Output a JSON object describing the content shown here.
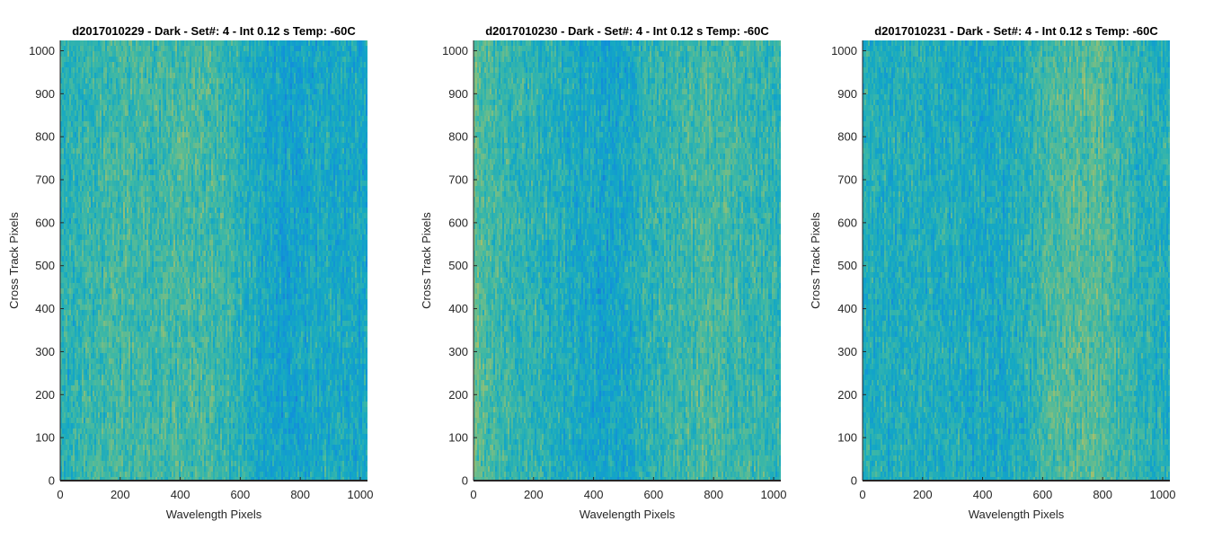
{
  "chart_data": [
    {
      "type": "heatmap",
      "title": "d2017010229 - Dark - Set#: 4 - Int 0.12 s Temp: -60C",
      "xlabel": "Wavelength Pixels",
      "ylabel": "Cross Track Pixels",
      "xlim": [
        0,
        1024
      ],
      "ylim": [
        0,
        1024
      ],
      "xticks": [
        0,
        200,
        400,
        600,
        800,
        1000
      ],
      "yticks": [
        0,
        100,
        200,
        300,
        400,
        500,
        600,
        700,
        800,
        900,
        1000
      ],
      "column_profile": {
        "x": [
          0,
          100,
          200,
          300,
          400,
          500,
          560,
          620,
          680,
          760,
          840,
          920,
          1024
        ],
        "level": [
          0.5,
          0.55,
          0.62,
          0.58,
          0.62,
          0.6,
          0.56,
          0.48,
          0.38,
          0.35,
          0.4,
          0.42,
          0.4
        ]
      }
    },
    {
      "type": "heatmap",
      "title": "d2017010230 - Dark - Set#: 4 - Int 0.12 s Temp: -60C",
      "xlabel": "Wavelength Pixels",
      "ylabel": "Cross Track Pixels",
      "xlim": [
        0,
        1024
      ],
      "ylim": [
        0,
        1024
      ],
      "xticks": [
        0,
        200,
        400,
        600,
        800,
        1000
      ],
      "yticks": [
        0,
        100,
        200,
        300,
        400,
        500,
        600,
        700,
        800,
        900,
        1000
      ],
      "column_profile": {
        "x": [
          0,
          40,
          120,
          250,
          350,
          430,
          520,
          560,
          650,
          760,
          840,
          920,
          1024
        ],
        "level": [
          0.7,
          0.62,
          0.55,
          0.48,
          0.42,
          0.36,
          0.4,
          0.5,
          0.55,
          0.62,
          0.6,
          0.56,
          0.52
        ]
      }
    },
    {
      "type": "heatmap",
      "title": "d2017010231 - Dark - Set#: 4 - Int 0.12 s Temp: -60C",
      "xlabel": "Wavelength Pixels",
      "ylabel": "Cross Track Pixels",
      "xlim": [
        0,
        1024
      ],
      "ylim": [
        0,
        1024
      ],
      "xticks": [
        0,
        200,
        400,
        600,
        800,
        1000
      ],
      "yticks": [
        0,
        100,
        200,
        300,
        400,
        500,
        600,
        700,
        800,
        900,
        1000
      ],
      "column_profile": {
        "x": [
          0,
          100,
          200,
          300,
          400,
          500,
          560,
          620,
          700,
          780,
          860,
          940,
          1024
        ],
        "level": [
          0.48,
          0.45,
          0.47,
          0.44,
          0.42,
          0.44,
          0.52,
          0.62,
          0.66,
          0.68,
          0.58,
          0.5,
          0.46
        ]
      }
    }
  ],
  "colormap": [
    "#1e73d6",
    "#1192d8",
    "#14a8c4",
    "#3fb8a4",
    "#7fbe80",
    "#b4c064"
  ]
}
